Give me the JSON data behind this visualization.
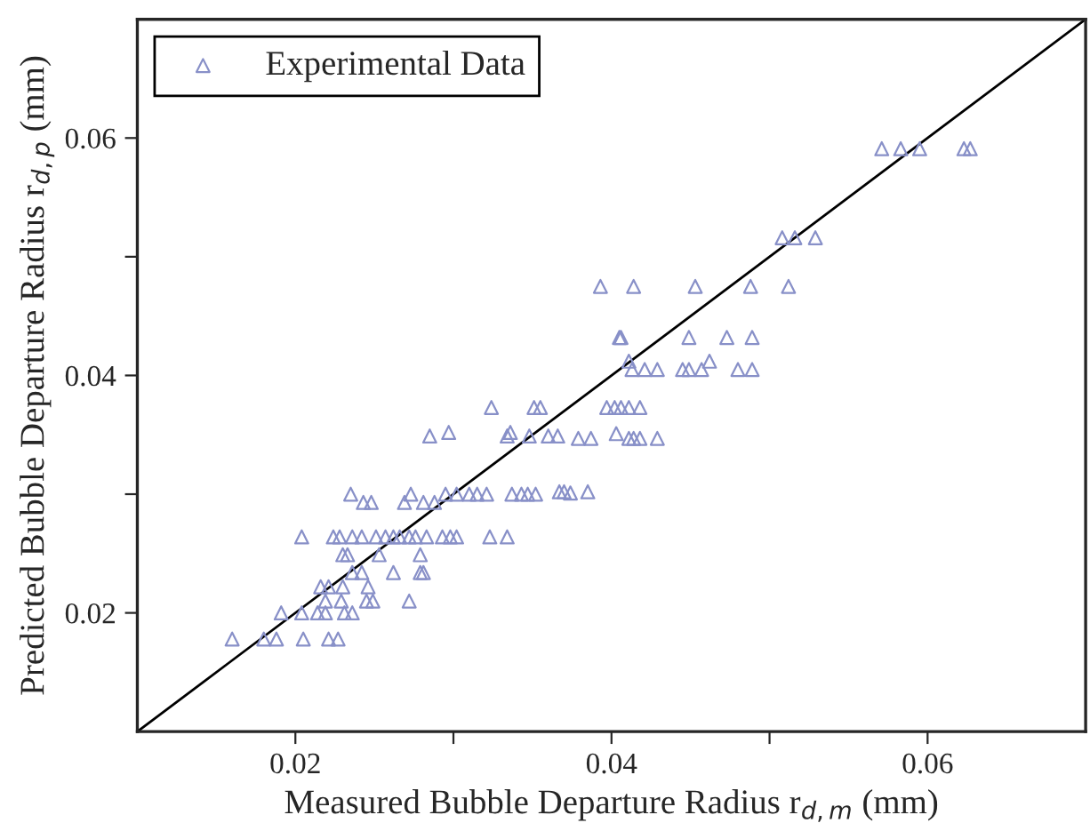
{
  "chart_data": {
    "type": "scatter",
    "xlabel": "Measured Bubble Departure Radius r$_{d,m}$ (mm)",
    "ylabel": "Predicted Bubble Departure Radius r$_{d,p}$ (mm)",
    "xlim": [
      0.01,
      0.07
    ],
    "ylim": [
      0.01,
      0.07
    ],
    "xticks": [
      0.02,
      {
        "value": 0.03,
        "label": null
      },
      0.04,
      {
        "value": 0.05,
        "label": null
      },
      0.06
    ],
    "yticks": [
      0.02,
      {
        "value": 0.03,
        "label": null
      },
      0.04,
      {
        "value": 0.05,
        "label": null
      },
      0.06
    ],
    "grid": false,
    "legend": "top left",
    "series": [
      {
        "name": "Experimental Data",
        "marker": "triangle",
        "color": "#8890c8",
        "x": [
          0.016,
          0.018,
          0.0188,
          0.0205,
          0.0221,
          0.0227,
          0.0191,
          0.0204,
          0.0214,
          0.0219,
          0.0231,
          0.0236,
          0.0219,
          0.0229,
          0.0245,
          0.0249,
          0.0272,
          0.0216,
          0.0221,
          0.023,
          0.0246,
          0.0236,
          0.0242,
          0.0262,
          0.0279,
          0.0281,
          0.023,
          0.0233,
          0.0253,
          0.0279,
          0.0204,
          0.0224,
          0.0228,
          0.0236,
          0.0242,
          0.0251,
          0.0257,
          0.0262,
          0.0266,
          0.0272,
          0.0276,
          0.0283,
          0.0293,
          0.0298,
          0.0302,
          0.0323,
          0.0334,
          0.0243,
          0.0248,
          0.0269,
          0.0281,
          0.0288,
          0.0235,
          0.0273,
          0.0295,
          0.0302,
          0.031,
          0.0315,
          0.0321,
          0.0337,
          0.0343,
          0.0347,
          0.0352,
          0.0367,
          0.037,
          0.0374,
          0.0385,
          0.0285,
          0.0334,
          0.0348,
          0.036,
          0.0366,
          0.0297,
          0.0336,
          0.0324,
          0.0351,
          0.0355,
          0.0379,
          0.0387,
          0.0403,
          0.0411,
          0.0414,
          0.0418,
          0.0429,
          0.0397,
          0.0402,
          0.0406,
          0.0411,
          0.0418,
          0.0413,
          0.0421,
          0.0429,
          0.0445,
          0.0449,
          0.0457,
          0.048,
          0.0489,
          0.0411,
          0.0462,
          0.0405,
          0.0406,
          0.0449,
          0.0473,
          0.0489,
          0.0393,
          0.0414,
          0.0453,
          0.0488,
          0.0512,
          0.0508,
          0.0516,
          0.0529,
          0.0571,
          0.0583,
          0.0595,
          0.0623,
          0.0627
        ],
        "values": [
          0.0178,
          0.0178,
          0.0178,
          0.0178,
          0.0178,
          0.0178,
          0.02,
          0.02,
          0.02,
          0.02,
          0.02,
          0.02,
          0.021,
          0.021,
          0.021,
          0.021,
          0.021,
          0.0222,
          0.0222,
          0.0222,
          0.0222,
          0.0234,
          0.0234,
          0.0234,
          0.0234,
          0.0234,
          0.0249,
          0.0249,
          0.0249,
          0.0249,
          0.0264,
          0.0264,
          0.0264,
          0.0264,
          0.0264,
          0.0264,
          0.0264,
          0.0264,
          0.0264,
          0.0264,
          0.0264,
          0.0264,
          0.0264,
          0.0264,
          0.0264,
          0.0264,
          0.0264,
          0.0293,
          0.0293,
          0.0293,
          0.0293,
          0.0293,
          0.03,
          0.03,
          0.03,
          0.03,
          0.03,
          0.03,
          0.03,
          0.03,
          0.03,
          0.03,
          0.03,
          0.0302,
          0.0302,
          0.0301,
          0.0302,
          0.0349,
          0.0349,
          0.0349,
          0.0349,
          0.0349,
          0.0352,
          0.0352,
          0.0373,
          0.0373,
          0.0373,
          0.0347,
          0.0347,
          0.0351,
          0.0347,
          0.0347,
          0.0347,
          0.0347,
          0.0373,
          0.0373,
          0.0373,
          0.0373,
          0.0373,
          0.0405,
          0.0405,
          0.0405,
          0.0405,
          0.0405,
          0.0405,
          0.0405,
          0.0405,
          0.0412,
          0.0412,
          0.0432,
          0.0432,
          0.0432,
          0.0432,
          0.0432,
          0.0475,
          0.0475,
          0.0475,
          0.0475,
          0.0475,
          0.0516,
          0.0516,
          0.0516,
          0.0591,
          0.0591,
          0.0591,
          0.0591,
          0.0591
        ]
      },
      {
        "type": "line",
        "color": "#000000",
        "line_style": "solid",
        "x": [
          0.01,
          0.07
        ],
        "values": [
          0.01,
          0.07
        ]
      }
    ]
  }
}
